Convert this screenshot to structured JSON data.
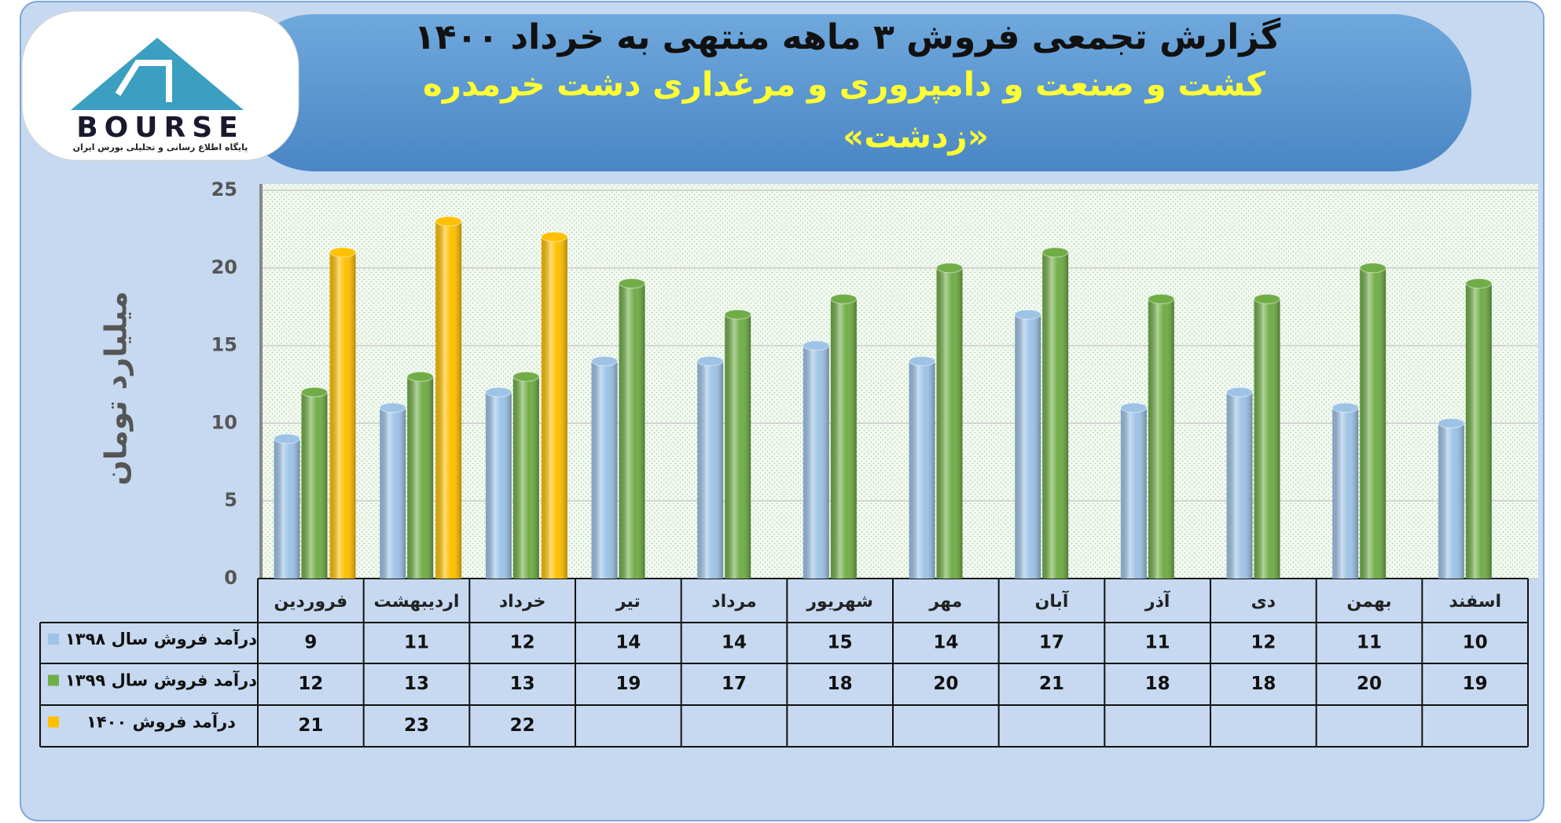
{
  "logo": {
    "name": "BOURSE",
    "tagline": "پایگاه اطلاع رسانی و تحلیلی بورس ایران"
  },
  "chart_data": {
    "type": "bar",
    "title": "گزارش تجمعی فروش ۳ ماهه منتهی به خرداد ۱۴۰۰",
    "subtitle": "کشت و صنعت و دامپروری و مرغداری دشت خرمدره",
    "subtitle2": "«زدشت»",
    "y_label": "میلیارد تومان",
    "categories": [
      "فروردین",
      "اردیبهشت",
      "خرداد",
      "تیر",
      "مرداد",
      "شهریور",
      "مهر",
      "آبان",
      "آذر",
      "دی",
      "بهمن",
      "اسفند"
    ],
    "series": [
      {
        "name": "درآمد فروش سال ۱۳۹۸",
        "color": "#9dc3e6",
        "values": [
          9,
          11,
          12,
          14,
          14,
          15,
          14,
          17,
          11,
          12,
          11,
          10
        ]
      },
      {
        "name": "درآمد فروش سال ۱۳۹۹",
        "color": "#70ad47",
        "values": [
          12,
          13,
          13,
          19,
          17,
          18,
          20,
          21,
          18,
          18,
          20,
          19
        ]
      },
      {
        "name": "درآمد فروش ۱۴۰۰",
        "color": "#ffc000",
        "values": [
          21,
          23,
          22,
          null,
          null,
          null,
          null,
          null,
          null,
          null,
          null,
          null
        ]
      }
    ],
    "ylim": [
      0,
      25
    ],
    "yticks": [
      0,
      5,
      10,
      15,
      20,
      25
    ],
    "grid": true
  }
}
